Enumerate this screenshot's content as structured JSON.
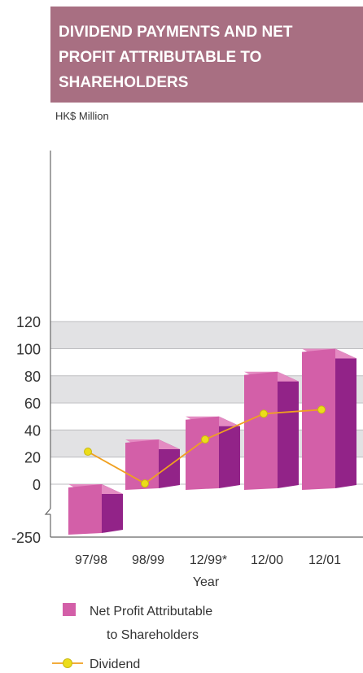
{
  "title_lines": [
    "DIVIDEND PAYMENTS AND NET",
    "PROFIT ATTRIBUTABLE TO",
    "SHAREHOLDERS"
  ],
  "unit_label": "HK$ Million",
  "colors": {
    "title_bg": "#a86f82",
    "band": "#e2e2e4",
    "bar_front": "#d35fa8",
    "bar_side": "#922388",
    "bar_top": "#e48bc2",
    "line": "#f0a020",
    "marker": "#ecdd1a",
    "marker_edge": "#c8b810"
  },
  "chart_data": {
    "type": "bar",
    "title": "DIVIDEND PAYMENTS AND NET PROFIT ATTRIBUTABLE TO SHAREHOLDERS",
    "ylabel": "HK$ Million",
    "xlabel": "Year",
    "categories": [
      "97/98",
      "98/99",
      "12/99*",
      "12/00",
      "12/01"
    ],
    "y_ticks": [
      "120",
      "100",
      "80",
      "60",
      "40",
      "20",
      "0",
      "-250"
    ],
    "y_tick_values": [
      120,
      100,
      80,
      60,
      40,
      20,
      0,
      -250
    ],
    "ylim": [
      -250,
      120
    ],
    "axis_break": "between 0 and -250",
    "grid": "alternating horizontal bands",
    "series": [
      {
        "name": "Net Profit Attributable to Shareholders",
        "type": "bar",
        "values": [
          -250,
          33,
          50,
          83,
          100
        ]
      },
      {
        "name": "Dividend",
        "type": "line",
        "values": [
          24,
          0.5,
          33,
          52,
          55
        ]
      }
    ],
    "legend_position": "bottom"
  },
  "legend": {
    "bar_line1": "Net Profit Attributable",
    "bar_line2": "to Shareholders",
    "line_label": "Dividend"
  }
}
